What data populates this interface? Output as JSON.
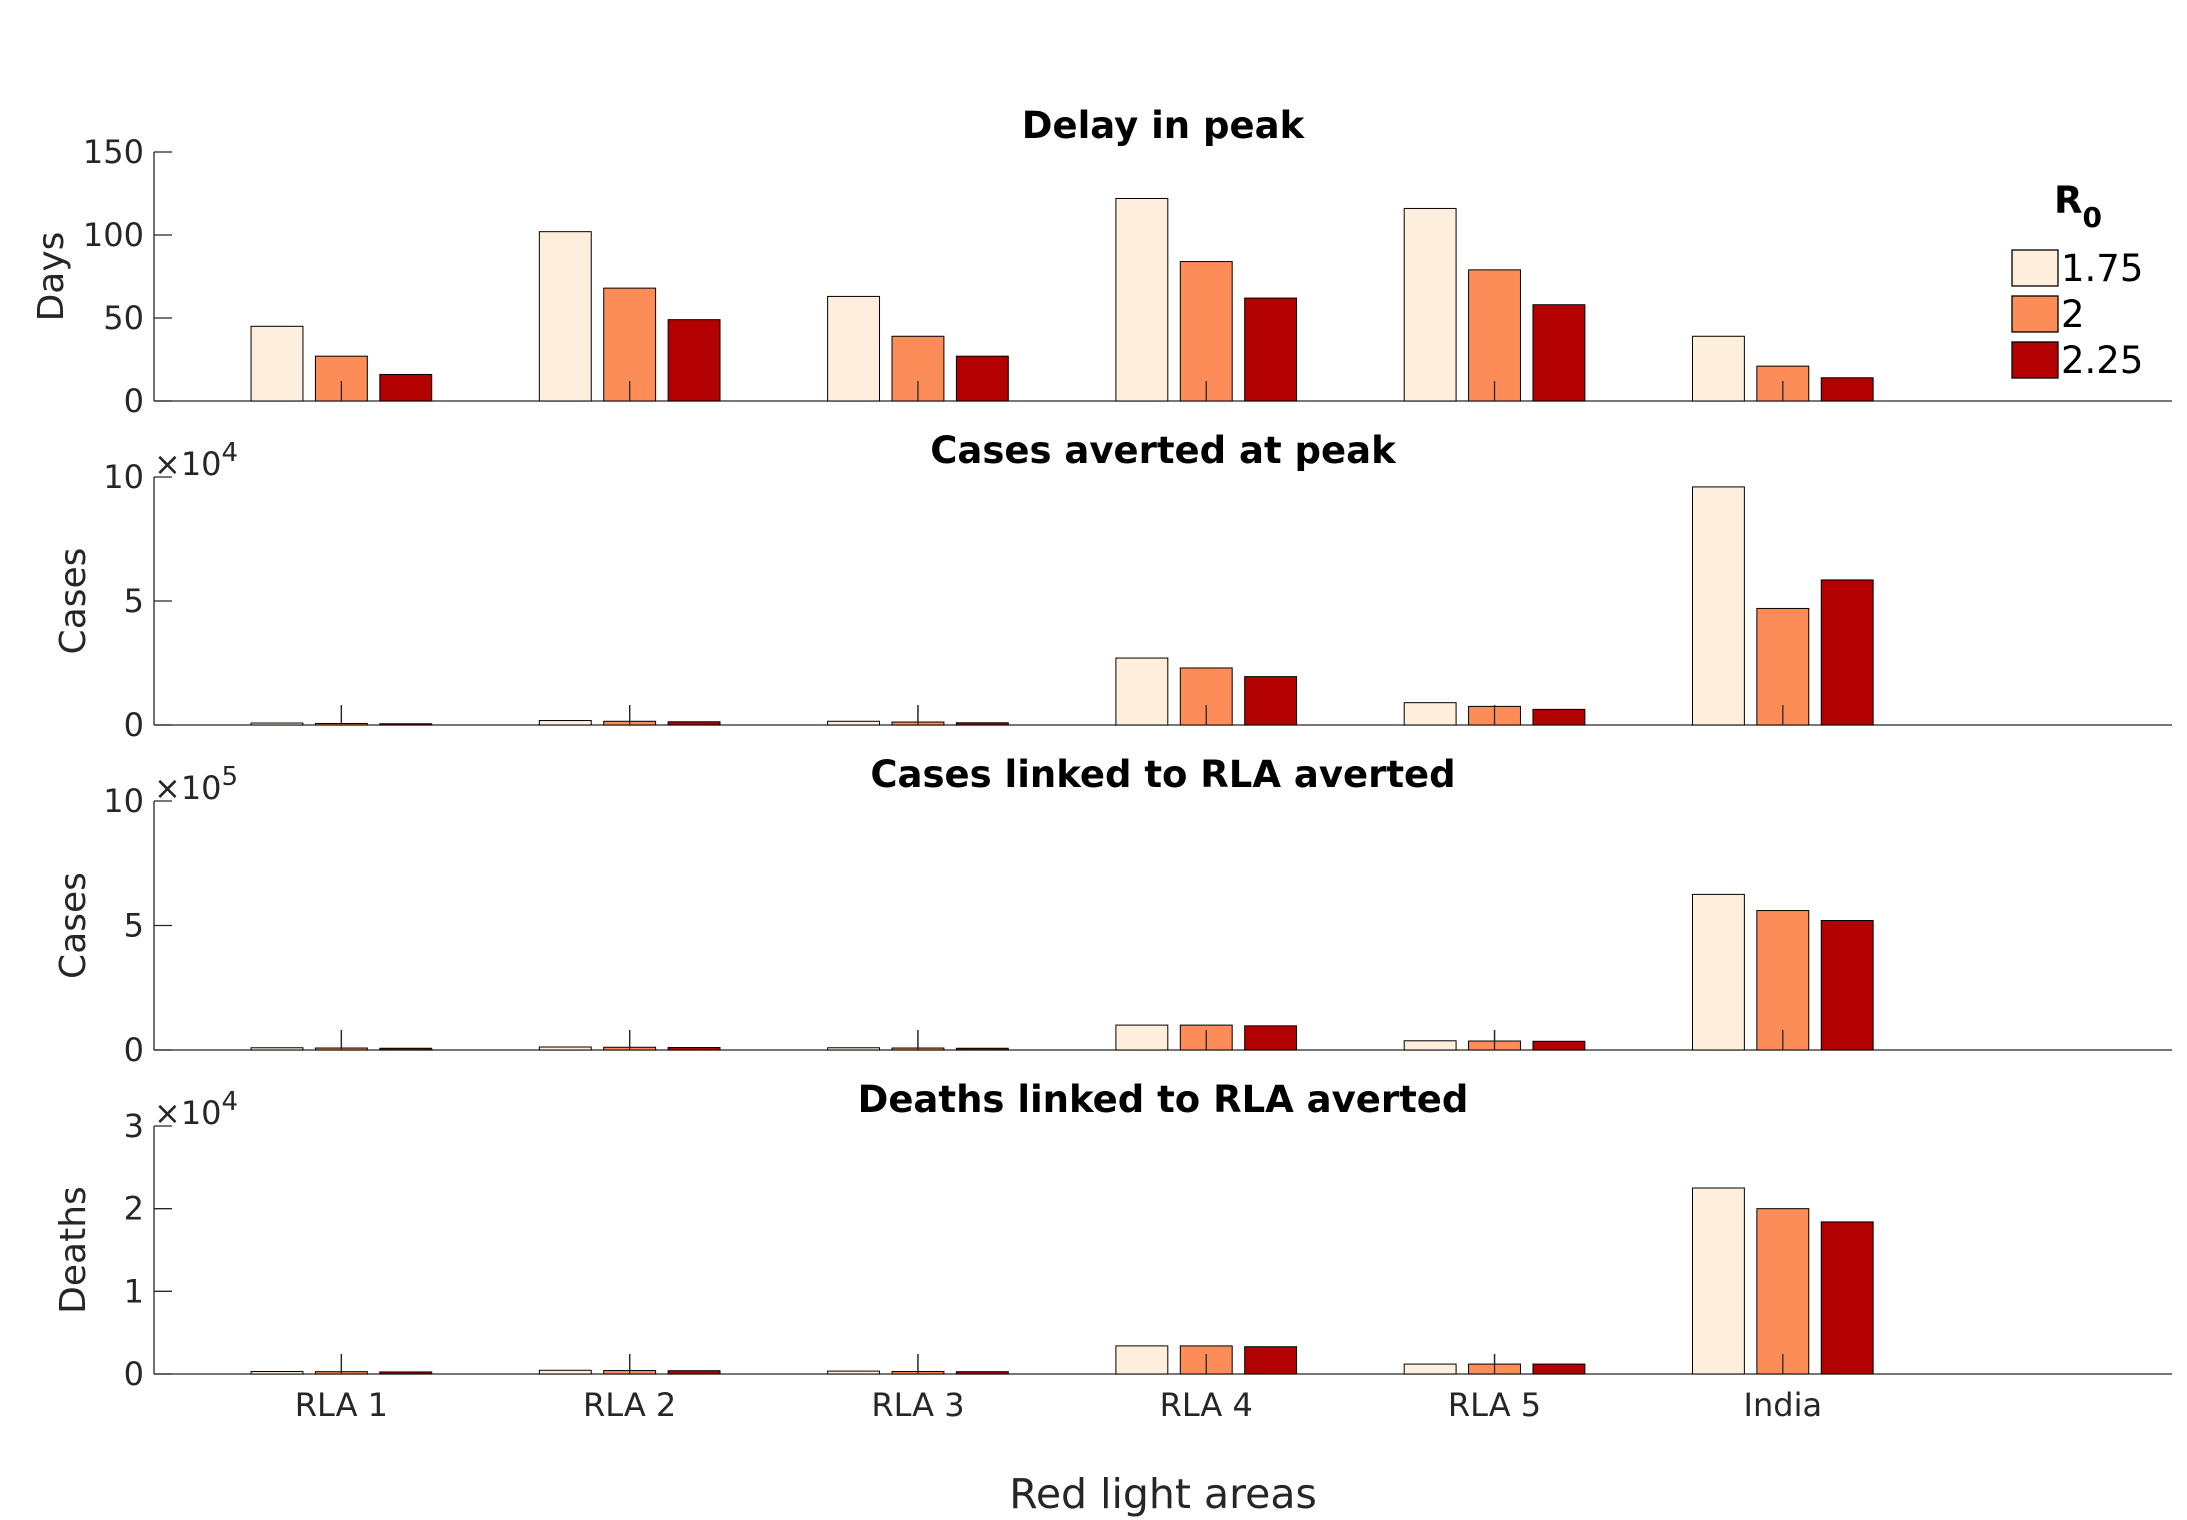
{
  "chart_data": [
    {
      "type": "bar",
      "title": "Delay in peak",
      "ylabel": "Days",
      "ylim": [
        0,
        150
      ],
      "yticks": [
        "0",
        "50",
        "100",
        "150"
      ],
      "ytick_values": [
        0,
        50,
        100,
        150
      ],
      "exponent_label": "",
      "categories": [
        "RLA 1",
        "RLA 2",
        "RLA 3",
        "RLA 4",
        "RLA 5",
        "India"
      ],
      "series": [
        {
          "name": "1.75",
          "values": [
            45,
            102,
            63,
            122,
            116,
            39
          ]
        },
        {
          "name": "2",
          "values": [
            27,
            68,
            39,
            84,
            79,
            21
          ]
        },
        {
          "name": "2.25",
          "values": [
            16,
            49,
            27,
            62,
            58,
            14
          ]
        }
      ]
    },
    {
      "type": "bar",
      "title": "Cases averted at peak",
      "ylabel": "Cases",
      "ylim": [
        0,
        100000
      ],
      "yticks": [
        "0",
        "5",
        "10"
      ],
      "ytick_values": [
        0,
        50000,
        100000
      ],
      "exponent_label": "×10",
      "exponent_power": "4",
      "categories": [
        "RLA 1",
        "RLA 2",
        "RLA 3",
        "RLA 4",
        "RLA 5",
        "India"
      ],
      "series": [
        {
          "name": "1.75",
          "values": [
            800,
            1800,
            1500,
            27000,
            9000,
            96000
          ]
        },
        {
          "name": "2",
          "values": [
            600,
            1500,
            1200,
            23000,
            7500,
            47000
          ]
        },
        {
          "name": "2.25",
          "values": [
            500,
            1300,
            900,
            19500,
            6300,
            58500
          ]
        }
      ]
    },
    {
      "type": "bar",
      "title": "Cases linked to RLA averted",
      "ylabel": "Cases",
      "ylim": [
        0,
        1000000
      ],
      "yticks": [
        "0",
        "5",
        "10"
      ],
      "ytick_values": [
        0,
        500000,
        1000000
      ],
      "exponent_label": "×10",
      "exponent_power": "5",
      "categories": [
        "RLA 1",
        "RLA 2",
        "RLA 3",
        "RLA 4",
        "RLA 5",
        "India"
      ],
      "series": [
        {
          "name": "1.75",
          "values": [
            9000,
            12000,
            9000,
            100000,
            37000,
            625000
          ]
        },
        {
          "name": "2",
          "values": [
            8000,
            11000,
            8000,
            100000,
            36000,
            560000
          ]
        },
        {
          "name": "2.25",
          "values": [
            7000,
            10000,
            7000,
            97000,
            35000,
            520000
          ]
        }
      ]
    },
    {
      "type": "bar",
      "title": "Deaths linked to RLA averted",
      "ylabel": "Deaths",
      "ylim": [
        0,
        30000
      ],
      "yticks": [
        "0",
        "1",
        "2",
        "3"
      ],
      "ytick_values": [
        0,
        10000,
        20000,
        30000
      ],
      "exponent_label": "×10",
      "exponent_power": "4",
      "categories": [
        "RLA 1",
        "RLA 2",
        "RLA 3",
        "RLA 4",
        "RLA 5",
        "India"
      ],
      "series": [
        {
          "name": "1.75",
          "values": [
            300,
            450,
            350,
            3400,
            1200,
            22500
          ]
        },
        {
          "name": "2",
          "values": [
            280,
            420,
            300,
            3400,
            1200,
            20000
          ]
        },
        {
          "name": "2.25",
          "values": [
            250,
            400,
            280,
            3300,
            1200,
            18400
          ]
        }
      ]
    }
  ],
  "xlabel": "Red light areas",
  "legend": {
    "title": "R",
    "title_subscript": "0",
    "placement": "top-right",
    "entries": [
      "1.75",
      "2",
      "2.25"
    ]
  },
  "colors": {
    "series": [
      "#fdefdc",
      "#fc8d59",
      "#b30000"
    ],
    "edge": "#000000",
    "axis": "#262626"
  }
}
